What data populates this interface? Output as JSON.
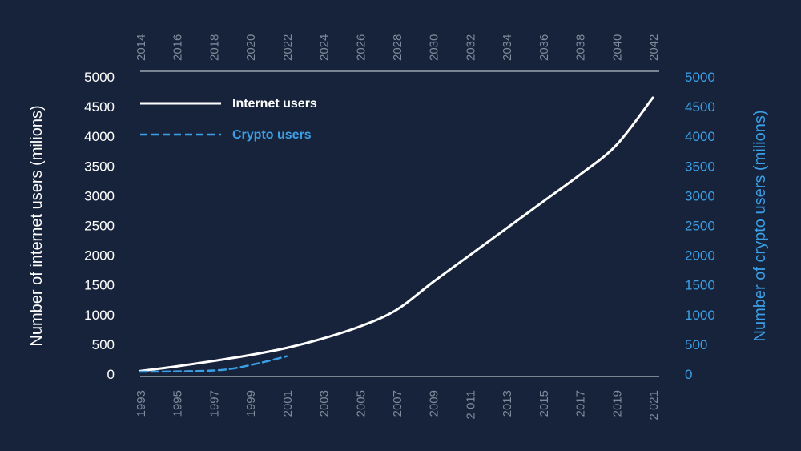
{
  "chart_data": {
    "type": "line",
    "y_left": {
      "label": "Number of internet users (milions)",
      "range": [
        0,
        5000
      ],
      "ticks": [
        "0",
        "500",
        "1000",
        "1500",
        "2000",
        "2500",
        "3000",
        "3500",
        "4000",
        "4500",
        "5000"
      ]
    },
    "y_right": {
      "label": "Number of crypto users (milions)",
      "range": [
        0,
        5000
      ],
      "ticks": [
        "0",
        "500",
        "1000",
        "1500",
        "2000",
        "2500",
        "3000",
        "3500",
        "4000",
        "4500",
        "5000"
      ]
    },
    "x_bottom": {
      "range": [
        1993,
        2021
      ],
      "ticks": [
        "1993",
        "1995",
        "1997",
        "1999",
        "2001",
        "2003",
        "2005",
        "2007",
        "2009",
        "2 011",
        "2013",
        "2015",
        "2017",
        "2019",
        "2 021"
      ]
    },
    "x_top": {
      "range": [
        2014,
        2042
      ],
      "ticks": [
        "2014",
        "2016",
        "2018",
        "2020",
        "2022",
        "2024",
        "2026",
        "2028",
        "2030",
        "2032",
        "2034",
        "2036",
        "2038",
        "2040",
        "2042"
      ]
    },
    "series": [
      {
        "name": "Internet users",
        "axis": "bottom-left",
        "color": "#ffffff",
        "style": "solid",
        "x": [
          1993,
          1995,
          1997,
          1999,
          2001,
          2003,
          2005,
          2007,
          2009,
          2011,
          2013,
          2015,
          2017,
          2019,
          2021
        ],
        "y": [
          50,
          130,
          220,
          320,
          440,
          600,
          800,
          1080,
          1550,
          2000,
          2450,
          2900,
          3350,
          3850,
          4650
        ]
      },
      {
        "name": "Crypto users",
        "axis": "top-right",
        "color": "#3b9fe6",
        "style": "dashed",
        "x": [
          2014,
          2016,
          2018,
          2019,
          2020,
          2021,
          2022
        ],
        "y": [
          40,
          45,
          60,
          90,
          150,
          220,
          300
        ]
      }
    ],
    "legend_position": "top-left",
    "grid": false
  },
  "colors": {
    "background": "#17233b",
    "left_axis_text": "#ffffff",
    "right_axis_text": "#3b9fe6",
    "year_text": "#7f8a9a",
    "axis_line": "#9aa3b0"
  }
}
